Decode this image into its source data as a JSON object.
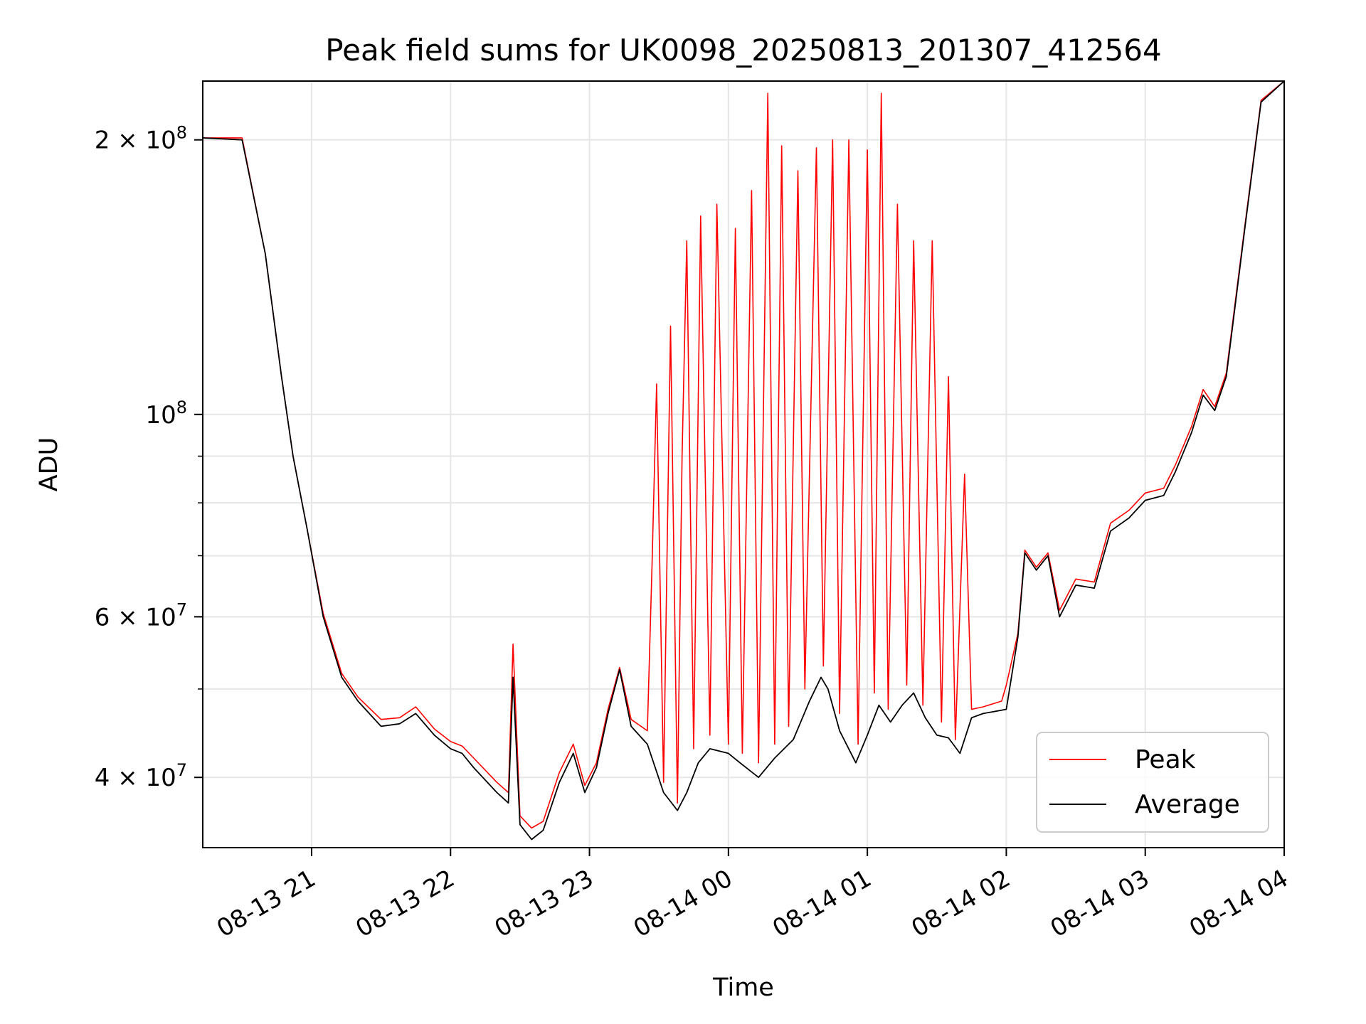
{
  "chart_data": {
    "type": "line",
    "title": "Peak field sums for UK0098_20250813_201307_412564",
    "xlabel": "Time",
    "ylabel": "ADU",
    "yscale": "log",
    "ylim": [
      33500000,
      232000000
    ],
    "xlim": [
      "2025-08-13 20:13",
      "2025-08-14 04:00"
    ],
    "grid": true,
    "legend_position": "lower right",
    "x_ticks": [
      "08-13 21",
      "08-13 22",
      "08-13 23",
      "08-14 00",
      "08-14 01",
      "08-14 02",
      "08-14 03",
      "08-14 04"
    ],
    "y_ticks": [
      {
        "value": 40000000,
        "label": "4 × 10",
        "exp": "7"
      },
      {
        "value": 60000000,
        "label": "6 × 10",
        "exp": "7"
      },
      {
        "value": 100000000,
        "label": "10",
        "exp": "8"
      },
      {
        "value": 200000000,
        "label": "2 × 10",
        "exp": "8"
      }
    ],
    "series": [
      {
        "name": "Average",
        "color": "#000000",
        "points": [
          [
            "2025-08-13 20:13",
            201000000
          ],
          [
            "2025-08-13 20:30",
            200000000
          ],
          [
            "2025-08-13 20:40",
            150000000
          ],
          [
            "2025-08-13 20:47",
            110000000
          ],
          [
            "2025-08-13 20:52",
            90000000
          ],
          [
            "2025-08-13 20:58",
            75000000
          ],
          [
            "2025-08-13 21:05",
            60000000
          ],
          [
            "2025-08-13 21:13",
            51500000
          ],
          [
            "2025-08-13 21:20",
            48500000
          ],
          [
            "2025-08-13 21:30",
            45500000
          ],
          [
            "2025-08-13 21:38",
            45800000
          ],
          [
            "2025-08-13 21:45",
            47000000
          ],
          [
            "2025-08-13 21:53",
            44500000
          ],
          [
            "2025-08-13 22:00",
            43000000
          ],
          [
            "2025-08-13 22:05",
            42500000
          ],
          [
            "2025-08-13 22:10",
            41000000
          ],
          [
            "2025-08-13 22:20",
            38500000
          ],
          [
            "2025-08-13 22:25",
            37500000
          ],
          [
            "2025-08-13 22:27",
            51500000
          ],
          [
            "2025-08-13 22:30",
            35500000
          ],
          [
            "2025-08-13 22:35",
            34200000
          ],
          [
            "2025-08-13 22:40",
            35000000
          ],
          [
            "2025-08-13 22:47",
            39500000
          ],
          [
            "2025-08-13 22:53",
            42500000
          ],
          [
            "2025-08-13 22:58",
            38500000
          ],
          [
            "2025-08-13 23:03",
            41000000
          ],
          [
            "2025-08-13 23:08",
            47000000
          ],
          [
            "2025-08-13 23:13",
            52500000
          ],
          [
            "2025-08-13 23:18",
            45500000
          ],
          [
            "2025-08-13 23:25",
            43500000
          ],
          [
            "2025-08-13 23:32",
            38500000
          ],
          [
            "2025-08-13 23:38",
            36800000
          ],
          [
            "2025-08-13 23:42",
            38500000
          ],
          [
            "2025-08-13 23:47",
            41500000
          ],
          [
            "2025-08-13 23:52",
            43000000
          ],
          [
            "2025-08-14 00:00",
            42500000
          ],
          [
            "2025-08-14 00:05",
            41500000
          ],
          [
            "2025-08-14 00:13",
            40000000
          ],
          [
            "2025-08-14 00:20",
            42000000
          ],
          [
            "2025-08-14 00:28",
            44000000
          ],
          [
            "2025-08-14 00:35",
            48500000
          ],
          [
            "2025-08-14 00:40",
            51500000
          ],
          [
            "2025-08-14 00:43",
            50000000
          ],
          [
            "2025-08-14 00:48",
            45000000
          ],
          [
            "2025-08-14 00:55",
            41500000
          ],
          [
            "2025-08-14 01:00",
            44500000
          ],
          [
            "2025-08-14 01:05",
            48000000
          ],
          [
            "2025-08-14 01:10",
            46000000
          ],
          [
            "2025-08-14 01:15",
            48000000
          ],
          [
            "2025-08-14 01:20",
            49500000
          ],
          [
            "2025-08-14 01:25",
            46500000
          ],
          [
            "2025-08-14 01:30",
            44500000
          ],
          [
            "2025-08-14 01:35",
            44200000
          ],
          [
            "2025-08-14 01:40",
            42500000
          ],
          [
            "2025-08-14 01:45",
            46500000
          ],
          [
            "2025-08-14 01:50",
            47000000
          ],
          [
            "2025-08-14 02:00",
            47500000
          ],
          [
            "2025-08-14 02:05",
            57000000
          ],
          [
            "2025-08-14 02:08",
            70500000
          ],
          [
            "2025-08-14 02:13",
            67500000
          ],
          [
            "2025-08-14 02:18",
            70000000
          ],
          [
            "2025-08-14 02:23",
            60000000
          ],
          [
            "2025-08-14 02:30",
            65000000
          ],
          [
            "2025-08-14 02:38",
            64500000
          ],
          [
            "2025-08-14 02:45",
            74500000
          ],
          [
            "2025-08-14 02:53",
            77000000
          ],
          [
            "2025-08-14 03:00",
            80500000
          ],
          [
            "2025-08-14 03:08",
            81500000
          ],
          [
            "2025-08-14 03:13",
            86500000
          ],
          [
            "2025-08-14 03:20",
            95500000
          ],
          [
            "2025-08-14 03:25",
            105000000
          ],
          [
            "2025-08-14 03:30",
            101000000
          ],
          [
            "2025-08-14 03:35",
            110000000
          ],
          [
            "2025-08-14 03:43",
            160000000
          ],
          [
            "2025-08-14 03:50",
            220000000
          ],
          [
            "2025-08-14 04:00",
            232000000
          ]
        ]
      },
      {
        "name": "Peak",
        "color": "#ff0000",
        "points": [
          [
            "2025-08-13 20:13",
            201000000
          ],
          [
            "2025-08-13 20:30",
            201000000
          ],
          [
            "2025-08-13 20:40",
            150000000
          ],
          [
            "2025-08-13 20:47",
            110000000
          ],
          [
            "2025-08-13 20:52",
            90000000
          ],
          [
            "2025-08-13 20:58",
            75000000
          ],
          [
            "2025-08-13 21:05",
            60500000
          ],
          [
            "2025-08-13 21:13",
            52000000
          ],
          [
            "2025-08-13 21:20",
            49000000
          ],
          [
            "2025-08-13 21:30",
            46300000
          ],
          [
            "2025-08-13 21:38",
            46500000
          ],
          [
            "2025-08-13 21:45",
            47800000
          ],
          [
            "2025-08-13 21:53",
            45200000
          ],
          [
            "2025-08-13 22:00",
            43800000
          ],
          [
            "2025-08-13 22:05",
            43300000
          ],
          [
            "2025-08-13 22:10",
            42000000
          ],
          [
            "2025-08-13 22:20",
            39500000
          ],
          [
            "2025-08-13 22:25",
            38500000
          ],
          [
            "2025-08-13 22:27",
            56000000
          ],
          [
            "2025-08-13 22:30",
            36300000
          ],
          [
            "2025-08-13 22:35",
            35200000
          ],
          [
            "2025-08-13 22:40",
            35800000
          ],
          [
            "2025-08-13 22:47",
            40500000
          ],
          [
            "2025-08-13 22:53",
            43500000
          ],
          [
            "2025-08-13 22:58",
            39200000
          ],
          [
            "2025-08-13 23:03",
            41500000
          ],
          [
            "2025-08-13 23:08",
            47500000
          ],
          [
            "2025-08-13 23:13",
            52800000
          ],
          [
            "2025-08-13 23:18",
            46300000
          ],
          [
            "2025-08-13 23:25",
            45000000
          ],
          [
            "2025-08-13 23:27",
            68000000
          ],
          [
            "2025-08-13 23:29",
            108000000
          ],
          [
            "2025-08-13 23:32",
            39500000
          ],
          [
            "2025-08-13 23:35",
            125000000
          ],
          [
            "2025-08-13 23:38",
            37500000
          ],
          [
            "2025-08-13 23:40",
            90000000
          ],
          [
            "2025-08-13 23:42",
            155000000
          ],
          [
            "2025-08-13 23:45",
            43000000
          ],
          [
            "2025-08-13 23:48",
            165000000
          ],
          [
            "2025-08-13 23:52",
            44500000
          ],
          [
            "2025-08-13 23:55",
            170000000
          ],
          [
            "2025-08-14 00:00",
            43500000
          ],
          [
            "2025-08-14 00:03",
            160000000
          ],
          [
            "2025-08-14 00:06",
            42500000
          ],
          [
            "2025-08-14 00:10",
            176000000
          ],
          [
            "2025-08-14 00:13",
            41500000
          ],
          [
            "2025-08-14 00:17",
            225000000
          ],
          [
            "2025-08-14 00:20",
            43500000
          ],
          [
            "2025-08-14 00:23",
            197000000
          ],
          [
            "2025-08-14 00:26",
            45500000
          ],
          [
            "2025-08-14 00:30",
            185000000
          ],
          [
            "2025-08-14 00:33",
            50000000
          ],
          [
            "2025-08-14 00:38",
            196000000
          ],
          [
            "2025-08-14 00:41",
            53000000
          ],
          [
            "2025-08-14 00:45",
            200000000
          ],
          [
            "2025-08-14 00:48",
            47000000
          ],
          [
            "2025-08-14 00:52",
            200000000
          ],
          [
            "2025-08-14 00:56",
            43500000
          ],
          [
            "2025-08-14 01:00",
            195000000
          ],
          [
            "2025-08-14 01:03",
            49500000
          ],
          [
            "2025-08-14 01:06",
            225000000
          ],
          [
            "2025-08-14 01:09",
            47500000
          ],
          [
            "2025-08-14 01:13",
            170000000
          ],
          [
            "2025-08-14 01:17",
            50500000
          ],
          [
            "2025-08-14 01:20",
            155000000
          ],
          [
            "2025-08-14 01:24",
            48000000
          ],
          [
            "2025-08-14 01:28",
            155000000
          ],
          [
            "2025-08-14 01:32",
            46000000
          ],
          [
            "2025-08-14 01:35",
            110000000
          ],
          [
            "2025-08-14 01:38",
            44000000
          ],
          [
            "2025-08-14 01:42",
            86000000
          ],
          [
            "2025-08-14 01:45",
            47500000
          ],
          [
            "2025-08-14 01:50",
            47800000
          ],
          [
            "2025-08-14 01:58",
            48500000
          ],
          [
            "2025-08-14 02:00",
            50500000
          ],
          [
            "2025-08-14 02:05",
            57500000
          ],
          [
            "2025-08-14 02:08",
            71000000
          ],
          [
            "2025-08-14 02:13",
            68000000
          ],
          [
            "2025-08-14 02:18",
            70500000
          ],
          [
            "2025-08-14 02:23",
            61000000
          ],
          [
            "2025-08-14 02:30",
            66000000
          ],
          [
            "2025-08-14 02:38",
            65500000
          ],
          [
            "2025-08-14 02:45",
            76000000
          ],
          [
            "2025-08-14 02:53",
            78500000
          ],
          [
            "2025-08-14 03:00",
            82000000
          ],
          [
            "2025-08-14 03:08",
            83000000
          ],
          [
            "2025-08-14 03:13",
            88000000
          ],
          [
            "2025-08-14 03:20",
            97000000
          ],
          [
            "2025-08-14 03:25",
            106500000
          ],
          [
            "2025-08-14 03:30",
            102000000
          ],
          [
            "2025-08-14 03:35",
            111000000
          ],
          [
            "2025-08-14 03:43",
            161000000
          ],
          [
            "2025-08-14 03:50",
            221000000
          ],
          [
            "2025-08-14 04:00",
            232000000
          ]
        ]
      }
    ]
  },
  "legend": {
    "entries": [
      {
        "label": "Peak",
        "color": "#ff0000"
      },
      {
        "label": "Average",
        "color": "#000000"
      }
    ]
  }
}
